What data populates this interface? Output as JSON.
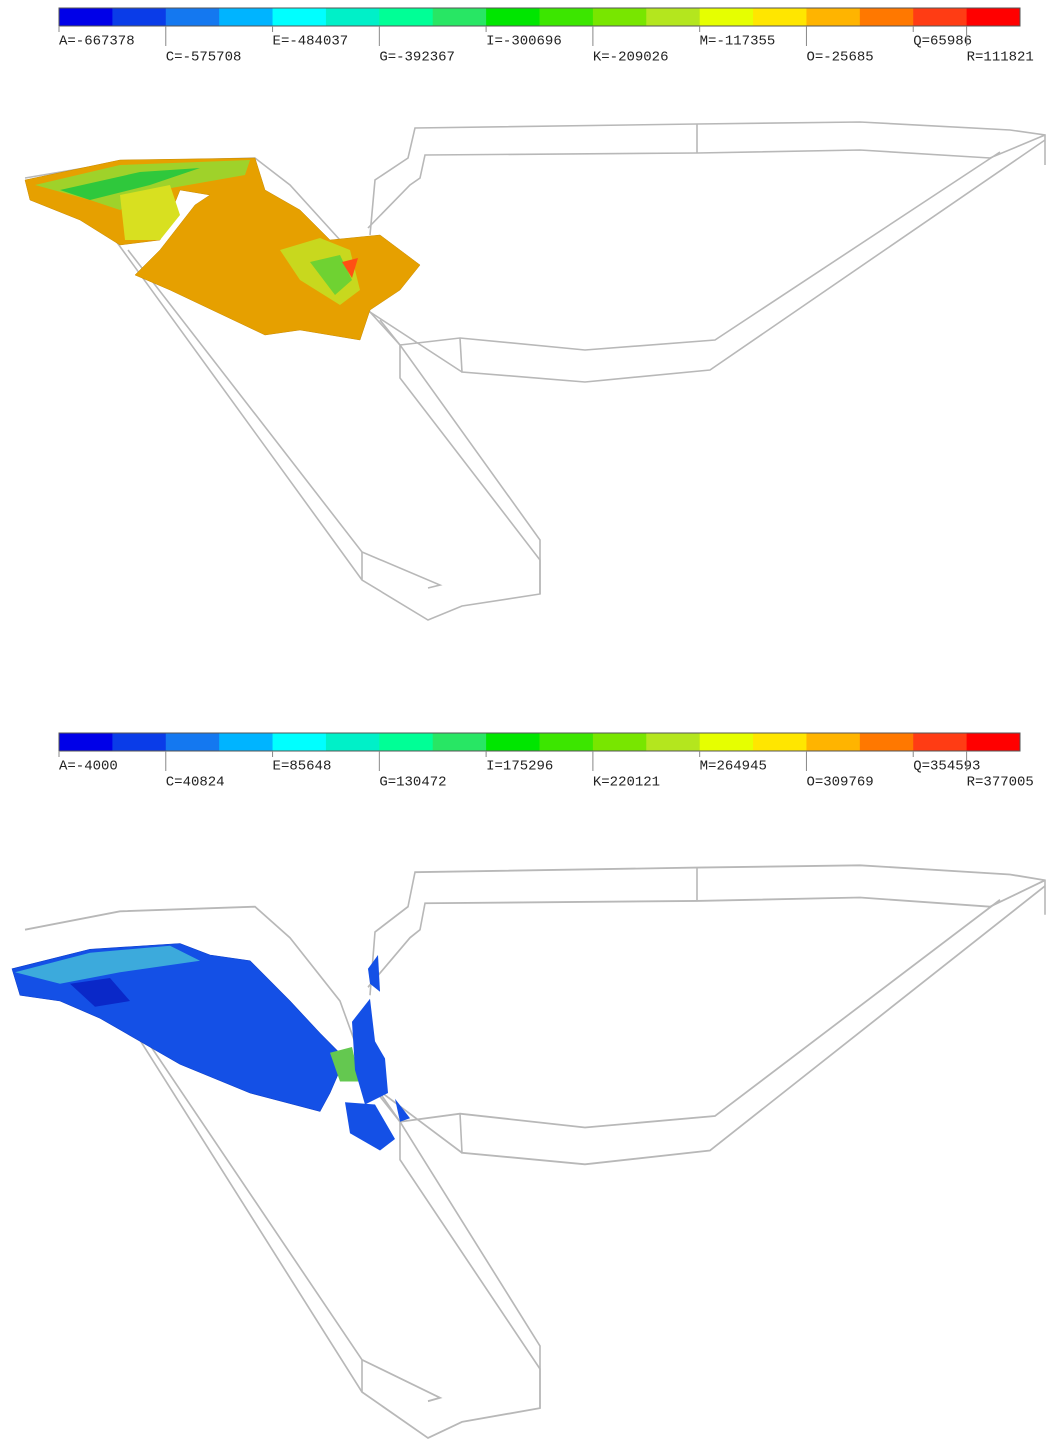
{
  "panels": [
    {
      "legend": {
        "colors": [
          "#0000e8",
          "#0a3ce8",
          "#1478f0",
          "#00b4ff",
          "#00ffff",
          "#00f0c8",
          "#00ff96",
          "#28e664",
          "#00e600",
          "#3ce600",
          "#78e600",
          "#b4e61e",
          "#e6ff00",
          "#ffe600",
          "#ffb400",
          "#ff7800",
          "#ff3c14",
          "#ff0000"
        ],
        "labels": [
          "A=-667378",
          "C=-575708",
          "E=-484037",
          "G=-392367",
          "I=-300696",
          "K=-209026",
          "M=-117355",
          "O=-25685",
          "Q=65986",
          "R=111821"
        ]
      }
    },
    {
      "legend": {
        "colors": [
          "#0000e8",
          "#0a3ce8",
          "#1478f0",
          "#00b4ff",
          "#00ffff",
          "#00f0c8",
          "#00ff96",
          "#28e664",
          "#00e600",
          "#3ce600",
          "#78e600",
          "#b4e61e",
          "#e6ff00",
          "#ffe600",
          "#ffb400",
          "#ff7800",
          "#ff3c14",
          "#ff0000"
        ],
        "labels": [
          "A=-4000",
          "C=40824",
          "E=85648",
          "G=130472",
          "I=175296",
          "K=220121",
          "M=264945",
          "O=309769",
          "Q=354593",
          "R=377005"
        ]
      }
    }
  ]
}
